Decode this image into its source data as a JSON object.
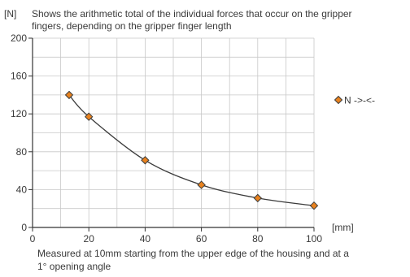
{
  "chart_data": {
    "type": "line",
    "title_lines": [
      "Shows the arithmetic total of the individual forces that occur on the gripper",
      "fingers, depending on the gripper finger length"
    ],
    "ylabel": "[N]",
    "xlabel": "[mm]",
    "xlim": [
      0,
      100
    ],
    "ylim": [
      0,
      200
    ],
    "x_ticks": [
      0,
      20,
      40,
      60,
      80,
      100
    ],
    "y_ticks": [
      0,
      40,
      80,
      120,
      160,
      200
    ],
    "grid": true,
    "legend_position": "right",
    "series": [
      {
        "name": "N ->-<-",
        "x": [
          13,
          20,
          40,
          60,
          80,
          100
        ],
        "y": [
          140,
          117,
          71,
          45,
          31,
          23
        ]
      }
    ],
    "note_lines": [
      "Measured at 10mm starting from the upper edge of the housing and at a",
      "1° opening angle"
    ],
    "colors": {
      "marker_fill": "#e8821f",
      "marker_stroke": "#3b3b3b",
      "line": "#3b3b3b",
      "grid": "#c8c8c8",
      "axis": "#333333"
    }
  }
}
